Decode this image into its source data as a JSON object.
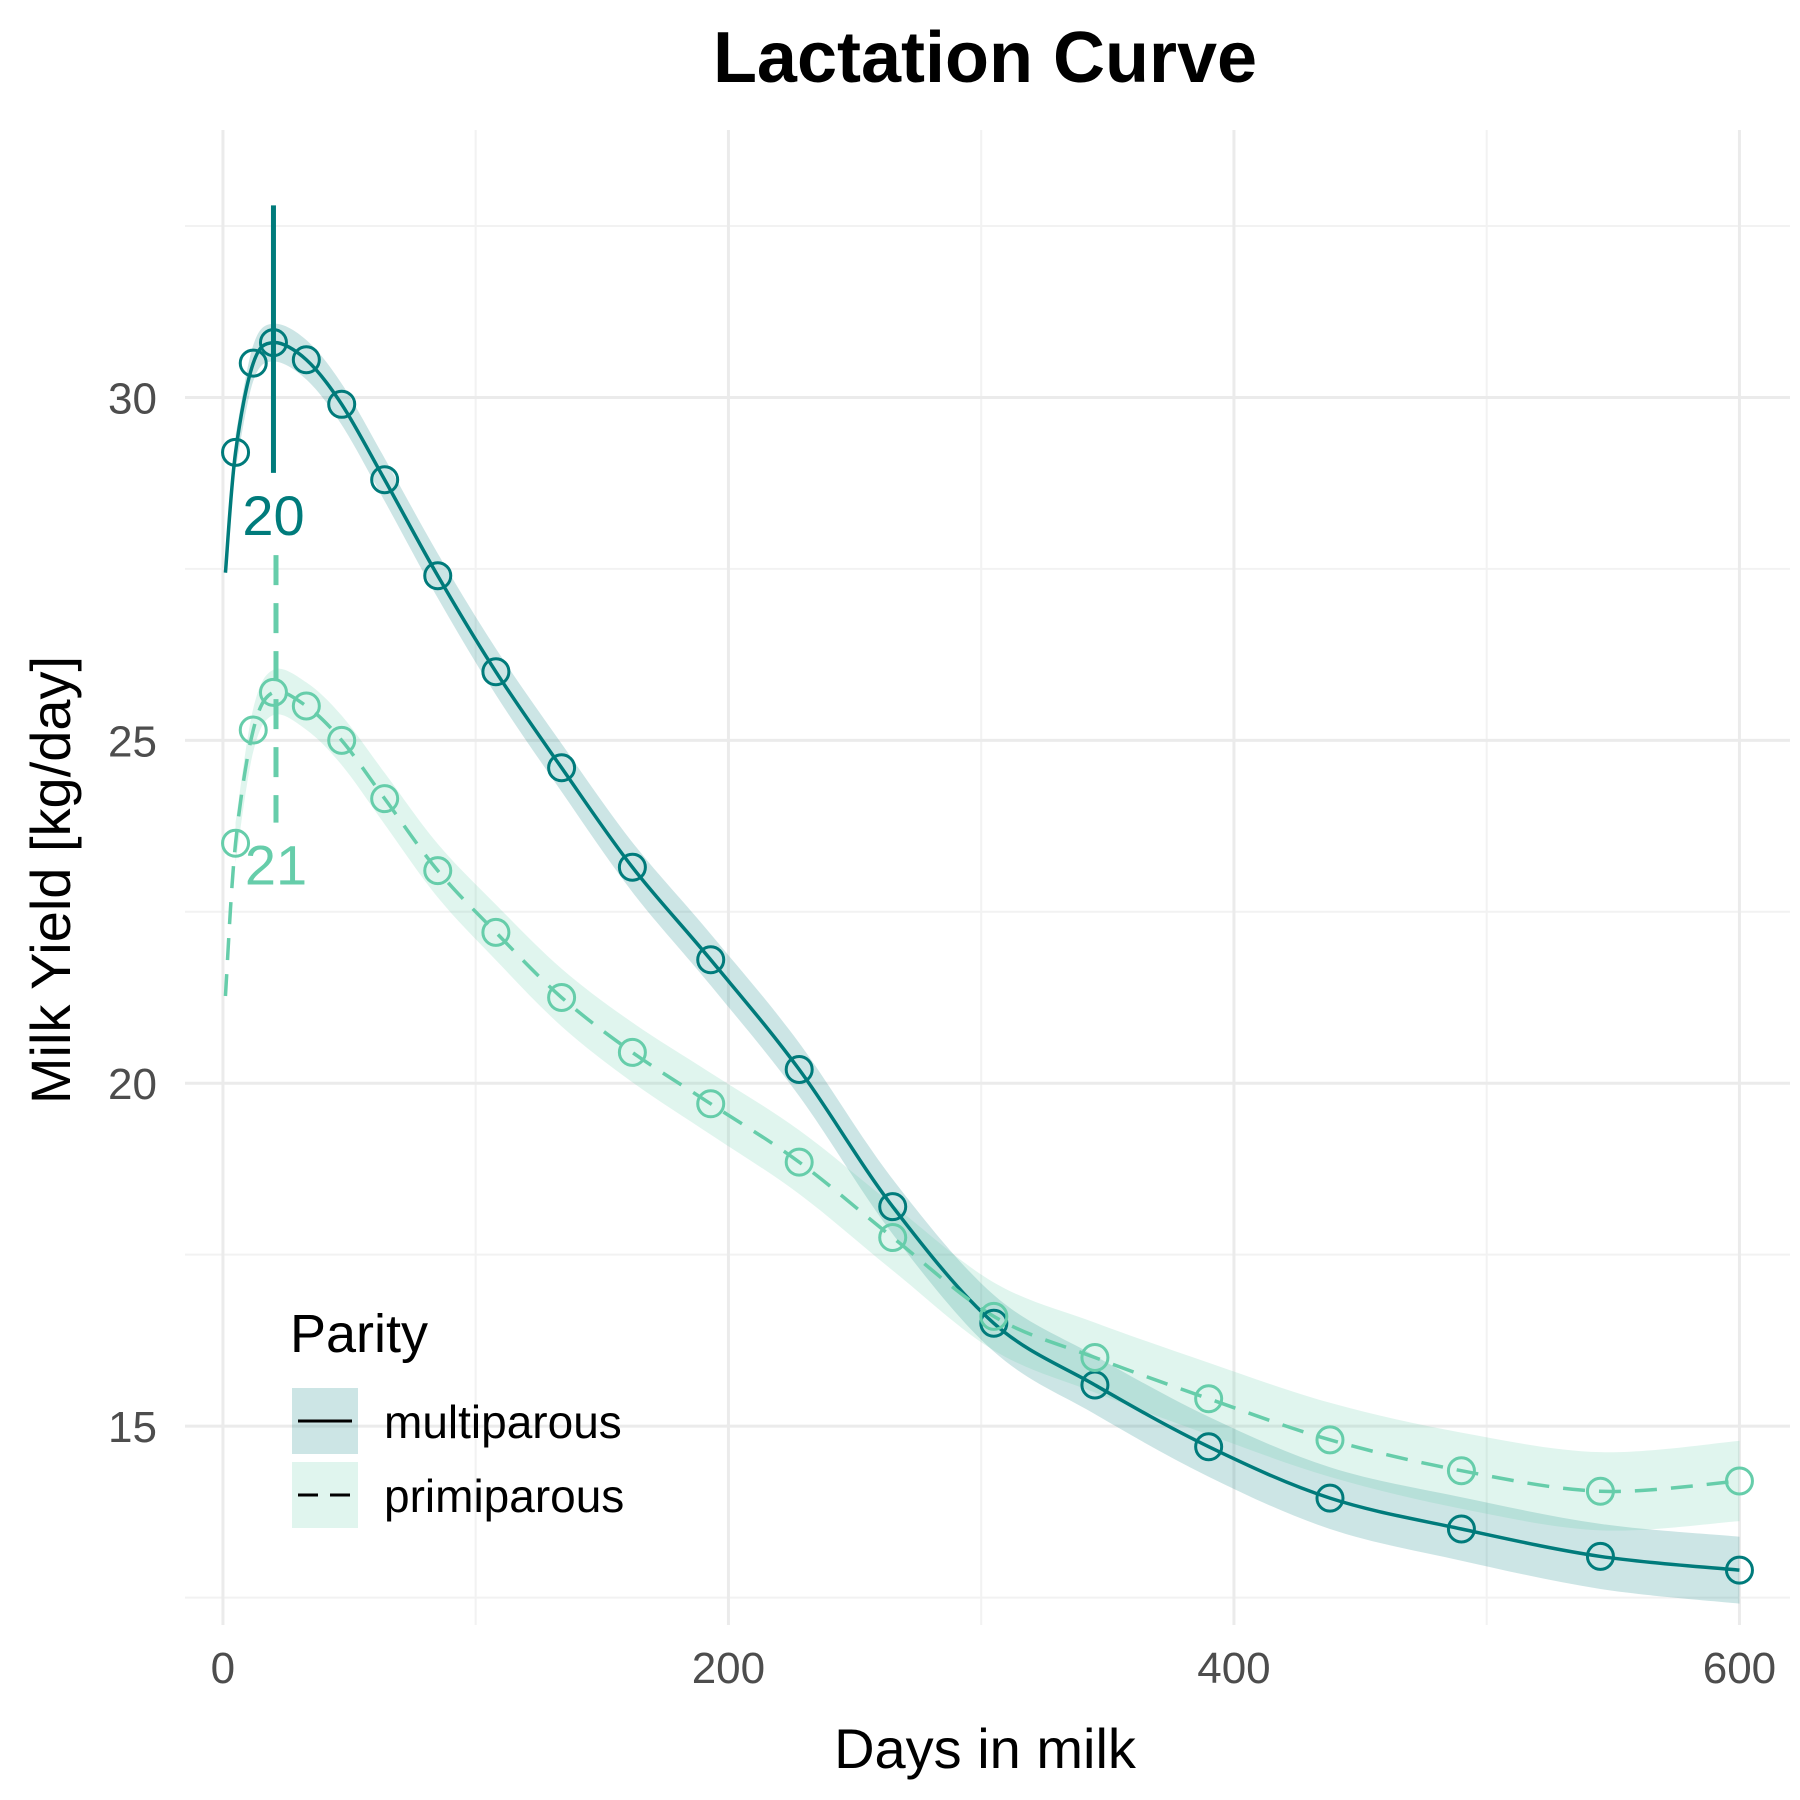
{
  "chart_data": {
    "type": "line",
    "title": "Lactation Curve",
    "xlabel": "Days in milk",
    "ylabel": "Milk Yield [kg/day]",
    "xlim": [
      -15,
      620
    ],
    "ylim": [
      12.1,
      33.9
    ],
    "x_ticks": [
      0,
      200,
      400,
      600
    ],
    "y_ticks": [
      15,
      20,
      25,
      30
    ],
    "grid": true,
    "legend": {
      "title": "Parity",
      "position": "bottom-left"
    },
    "series": [
      {
        "name": "multiparous",
        "color": "#007b7b",
        "line_style": "solid",
        "x": [
          5,
          12,
          20,
          33,
          47,
          64,
          85,
          108,
          134,
          162,
          193,
          228,
          265,
          305,
          345,
          390,
          438,
          490,
          545,
          600
        ],
        "y": [
          29.2,
          30.5,
          30.8,
          30.55,
          29.9,
          28.8,
          27.4,
          26.0,
          24.6,
          23.15,
          21.8,
          20.2,
          18.2,
          16.5,
          15.6,
          14.7,
          13.95,
          13.5,
          13.1,
          12.9
        ],
        "band_halfwidth": 0.25,
        "peak": {
          "x": 20,
          "label": "20"
        }
      },
      {
        "name": "primiparous",
        "color": "#66cdaa",
        "line_style": "dashed",
        "x": [
          5,
          12,
          20,
          33,
          47,
          64,
          85,
          108,
          134,
          162,
          193,
          228,
          265,
          305,
          345,
          390,
          438,
          490,
          545,
          600
        ],
        "y": [
          23.5,
          25.15,
          25.7,
          25.5,
          25.0,
          24.15,
          23.1,
          22.2,
          21.25,
          20.45,
          19.7,
          18.85,
          17.75,
          16.6,
          16.0,
          15.4,
          14.8,
          14.35,
          14.05,
          14.2
        ],
        "band_halfwidth": 0.3,
        "peak": {
          "x": 21,
          "label": "21"
        }
      }
    ]
  }
}
